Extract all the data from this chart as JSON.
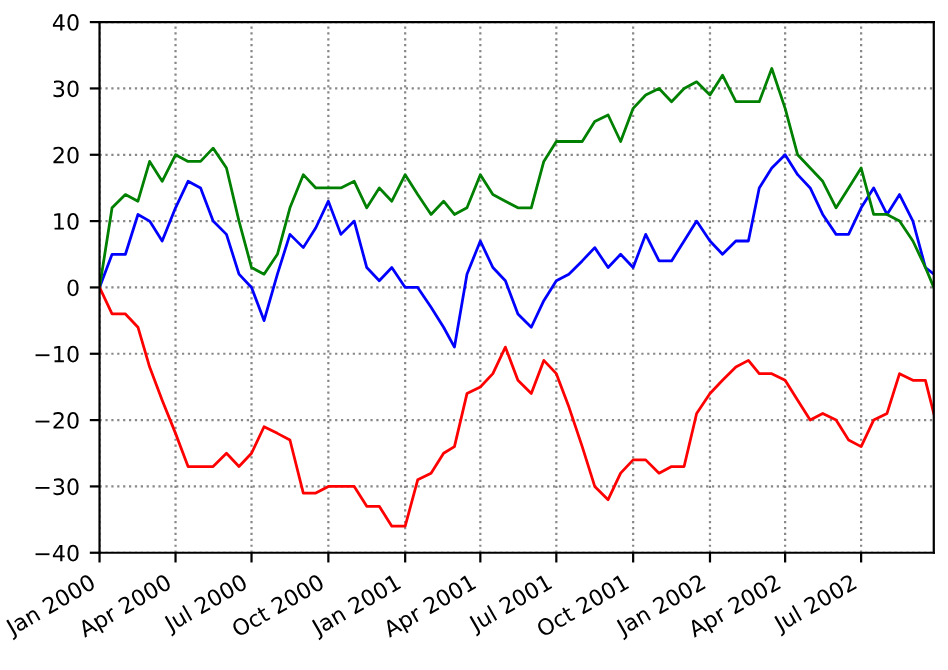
{
  "chart_data": {
    "type": "line",
    "x": [
      "2000-01-01",
      "2000-01-16",
      "2000-02-01",
      "2000-02-16",
      "2000-03-01",
      "2000-03-16",
      "2000-04-01",
      "2000-04-16",
      "2000-05-01",
      "2000-05-16",
      "2000-06-01",
      "2000-06-16",
      "2000-07-01",
      "2000-07-16",
      "2000-08-01",
      "2000-08-16",
      "2000-09-01",
      "2000-09-16",
      "2000-10-01",
      "2000-10-16",
      "2000-11-01",
      "2000-11-16",
      "2000-12-01",
      "2000-12-16",
      "2001-01-01",
      "2001-01-16",
      "2001-02-01",
      "2001-02-16",
      "2001-03-01",
      "2001-03-16",
      "2001-04-01",
      "2001-04-16",
      "2001-05-01",
      "2001-05-16",
      "2001-06-01",
      "2001-06-16",
      "2001-07-01",
      "2001-07-16",
      "2001-08-01",
      "2001-08-16",
      "2001-09-01",
      "2001-09-16",
      "2001-10-01",
      "2001-10-16",
      "2001-11-01",
      "2001-11-16",
      "2001-12-01",
      "2001-12-16",
      "2002-01-01",
      "2002-01-16",
      "2002-02-01",
      "2002-02-16",
      "2002-03-01",
      "2002-03-16",
      "2002-04-01",
      "2002-04-16",
      "2002-05-01",
      "2002-05-16",
      "2002-06-01",
      "2002-06-16",
      "2002-07-01",
      "2002-07-16",
      "2002-08-01",
      "2002-08-16",
      "2002-09-01",
      "2002-09-16",
      "2002-09-26"
    ],
    "series": [
      {
        "color": "#0000ff",
        "values": [
          0,
          5,
          5,
          11,
          10,
          7,
          12,
          16,
          15,
          10,
          8,
          2,
          0,
          -5,
          2,
          8,
          6,
          9,
          13,
          8,
          10,
          3,
          1,
          3,
          0,
          0,
          -3,
          -6,
          -9,
          2,
          7,
          3,
          1,
          -4,
          -6,
          -2,
          1,
          2,
          4,
          6,
          3,
          5,
          3,
          8,
          4,
          4,
          7,
          10,
          7,
          5,
          7,
          7,
          15,
          18,
          20,
          17,
          15,
          11,
          8,
          8,
          12,
          15,
          11,
          14,
          10,
          3,
          2
        ]
      },
      {
        "color": "#008000",
        "values": [
          0,
          12,
          14,
          13,
          19,
          16,
          20,
          19,
          19,
          21,
          18,
          10,
          3,
          2,
          5,
          12,
          17,
          15,
          15,
          15,
          16,
          12,
          15,
          13,
          17,
          14,
          11,
          13,
          11,
          12,
          17,
          14,
          13,
          12,
          12,
          19,
          22,
          22,
          22,
          25,
          26,
          22,
          27,
          29,
          30,
          28,
          30,
          31,
          29,
          32,
          28,
          28,
          28,
          33,
          27,
          20,
          18,
          16,
          12,
          15,
          18,
          11,
          11,
          10,
          7,
          3,
          0
        ]
      },
      {
        "color": "#ff0000",
        "values": [
          0,
          -4,
          -4,
          -6,
          -12,
          -17,
          -22,
          -27,
          -27,
          -27,
          -25,
          -27,
          -25,
          -21,
          -22,
          -23,
          -31,
          -31,
          -30,
          -30,
          -30,
          -33,
          -33,
          -36,
          -36,
          -29,
          -28,
          -25,
          -24,
          -16,
          -15,
          -13,
          -9,
          -14,
          -16,
          -11,
          -13,
          -18,
          -24,
          -30,
          -32,
          -28,
          -26,
          -26,
          -28,
          -27,
          -27,
          -19,
          -16,
          -14,
          -12,
          -11,
          -13,
          -13,
          -14,
          -17,
          -20,
          -19,
          -20,
          -23,
          -24,
          -20,
          -19,
          -13,
          -14,
          -14,
          -19
        ]
      }
    ],
    "xlim": [
      "2000-01-01",
      "2002-09-26"
    ],
    "xticks": [
      {
        "value": "2000-01-01",
        "label": "Jan 2000"
      },
      {
        "value": "2000-04-01",
        "label": "Apr 2000"
      },
      {
        "value": "2000-07-01",
        "label": "Jul 2000"
      },
      {
        "value": "2000-10-01",
        "label": "Oct 2000"
      },
      {
        "value": "2001-01-01",
        "label": "Jan 2001"
      },
      {
        "value": "2001-04-01",
        "label": "Apr 2001"
      },
      {
        "value": "2001-07-01",
        "label": "Jul 2001"
      },
      {
        "value": "2001-10-01",
        "label": "Oct 2001"
      },
      {
        "value": "2002-01-01",
        "label": "Jan 2002"
      },
      {
        "value": "2002-04-01",
        "label": "Apr 2002"
      },
      {
        "value": "2002-07-01",
        "label": "Jul 2002"
      }
    ],
    "ylim": [
      -40,
      40
    ],
    "yticks": [
      {
        "value": -40,
        "label": "−40"
      },
      {
        "value": -30,
        "label": "−30"
      },
      {
        "value": -20,
        "label": "−20"
      },
      {
        "value": -10,
        "label": "−10"
      },
      0,
      10,
      20,
      30,
      40
    ],
    "grid": true,
    "line_style": "solid",
    "marker": "none"
  }
}
